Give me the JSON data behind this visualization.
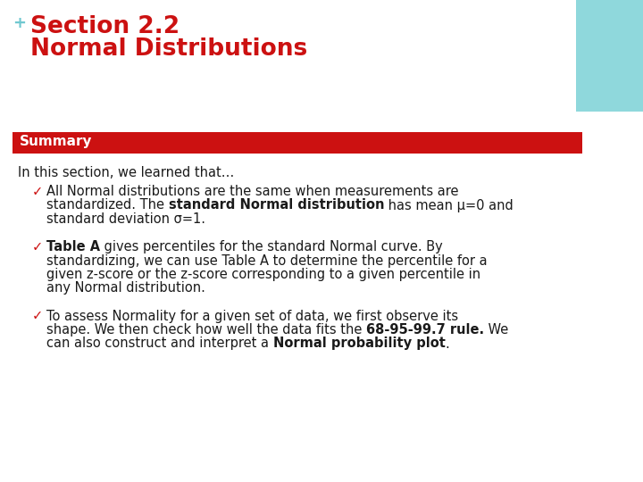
{
  "background_color": "#ffffff",
  "plus_sign": "+",
  "plus_color": "#70c8d0",
  "title_line1": "Section 2.2",
  "title_line2": "Normal Distributions",
  "title_color": "#cc1111",
  "summary_bar_color": "#cc1111",
  "summary_text": "Summary",
  "summary_text_color": "#ffffff",
  "intro_text": "In this section, we learned that…",
  "body_color": "#1a1a1a",
  "check_color": "#cc1111",
  "teal_rect_color": "#8fd8dc",
  "body_fontsize": 10.5,
  "title_fontsize": 19,
  "summary_fontsize": 11,
  "intro_fontsize": 10.5
}
